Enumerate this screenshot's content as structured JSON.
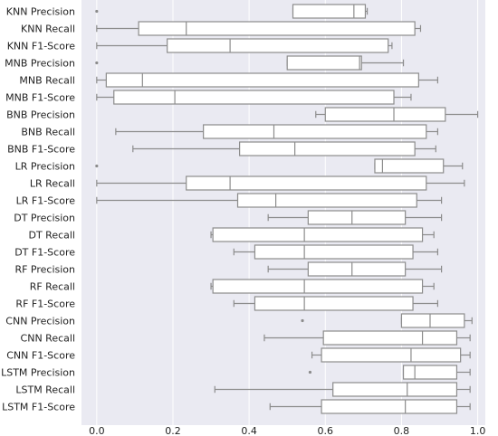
{
  "chart_data": {
    "type": "boxplot",
    "orientation": "horizontal",
    "title": "",
    "xlabel": "",
    "ylabel": "",
    "xlim": [
      -0.04,
      1.02
    ],
    "xticks": [
      0.0,
      0.2,
      0.4,
      0.6,
      0.8,
      1.0
    ],
    "xtick_labels": [
      "0.0",
      "0.2",
      "0.4",
      "0.6",
      "0.8",
      "1.0"
    ],
    "grid": true,
    "colors": {
      "plot_bg": "#eaeaf2",
      "box_fill": "#ffffff",
      "box_edge": "#8c8c8c",
      "grid": "#ffffff"
    },
    "categories": [
      "KNN Precision",
      "KNN Recall",
      "KNN F1-Score",
      "MNB Precision",
      "MNB Recall",
      "MNB F1-Score",
      "BNB Precision",
      "BNB Recall",
      "BNB F1-Score",
      "LR Precision",
      "LR Recall",
      "LR F1-Score",
      "DT Precision",
      "DT Recall",
      "DT F1-Score",
      "RF Precision",
      "RF Recall",
      "RF F1-Score",
      "CNN Precision",
      "CNN Recall",
      "CNN F1-Score",
      "LSTM Precision",
      "LSTM Recall",
      "LSTM F1-Score"
    ],
    "boxes": [
      {
        "label": "KNN Precision",
        "whislo": 0.515,
        "q1": 0.515,
        "med": 0.675,
        "q3": 0.705,
        "whishi": 0.71,
        "fliers": [
          0.0
        ]
      },
      {
        "label": "KNN Recall",
        "whislo": 0.0,
        "q1": 0.11,
        "med": 0.235,
        "q3": 0.835,
        "whishi": 0.85,
        "fliers": []
      },
      {
        "label": "KNN F1-Score",
        "whislo": 0.0,
        "q1": 0.185,
        "med": 0.35,
        "q3": 0.765,
        "whishi": 0.775,
        "fliers": []
      },
      {
        "label": "MNB Precision",
        "whislo": 0.5,
        "q1": 0.5,
        "med": 0.69,
        "q3": 0.695,
        "whishi": 0.805,
        "fliers": [
          0.0
        ]
      },
      {
        "label": "MNB Recall",
        "whislo": 0.0,
        "q1": 0.025,
        "med": 0.12,
        "q3": 0.845,
        "whishi": 0.895,
        "fliers": []
      },
      {
        "label": "MNB F1-Score",
        "whislo": 0.0,
        "q1": 0.045,
        "med": 0.205,
        "q3": 0.78,
        "whishi": 0.825,
        "fliers": []
      },
      {
        "label": "BNB Precision",
        "whislo": 0.575,
        "q1": 0.6,
        "med": 0.78,
        "q3": 0.915,
        "whishi": 1.0,
        "fliers": []
      },
      {
        "label": "BNB Recall",
        "whislo": 0.05,
        "q1": 0.28,
        "med": 0.465,
        "q3": 0.865,
        "whishi": 0.895,
        "fliers": []
      },
      {
        "label": "BNB F1-Score",
        "whislo": 0.095,
        "q1": 0.375,
        "med": 0.52,
        "q3": 0.835,
        "whishi": 0.89,
        "fliers": []
      },
      {
        "label": "LR Precision",
        "whislo": 0.73,
        "q1": 0.73,
        "med": 0.75,
        "q3": 0.91,
        "whishi": 0.96,
        "fliers": [
          0.0
        ]
      },
      {
        "label": "LR Recall",
        "whislo": 0.0,
        "q1": 0.235,
        "med": 0.35,
        "q3": 0.865,
        "whishi": 0.965,
        "fliers": []
      },
      {
        "label": "LR F1-Score",
        "whislo": 0.0,
        "q1": 0.37,
        "med": 0.47,
        "q3": 0.84,
        "whishi": 0.905,
        "fliers": []
      },
      {
        "label": "DT Precision",
        "whislo": 0.45,
        "q1": 0.555,
        "med": 0.67,
        "q3": 0.81,
        "whishi": 0.905,
        "fliers": []
      },
      {
        "label": "DT Recall",
        "whislo": 0.3,
        "q1": 0.305,
        "med": 0.545,
        "q3": 0.855,
        "whishi": 0.885,
        "fliers": []
      },
      {
        "label": "DT F1-Score",
        "whislo": 0.36,
        "q1": 0.415,
        "med": 0.545,
        "q3": 0.83,
        "whishi": 0.895,
        "fliers": []
      },
      {
        "label": "RF Precision",
        "whislo": 0.45,
        "q1": 0.555,
        "med": 0.67,
        "q3": 0.81,
        "whishi": 0.905,
        "fliers": []
      },
      {
        "label": "RF Recall",
        "whislo": 0.3,
        "q1": 0.305,
        "med": 0.545,
        "q3": 0.855,
        "whishi": 0.885,
        "fliers": []
      },
      {
        "label": "RF F1-Score",
        "whislo": 0.36,
        "q1": 0.415,
        "med": 0.545,
        "q3": 0.83,
        "whishi": 0.895,
        "fliers": []
      },
      {
        "label": "CNN Precision",
        "whislo": 0.8,
        "q1": 0.8,
        "med": 0.875,
        "q3": 0.965,
        "whishi": 0.985,
        "fliers": [
          0.54
        ]
      },
      {
        "label": "CNN Recall",
        "whislo": 0.44,
        "q1": 0.595,
        "med": 0.855,
        "q3": 0.945,
        "whishi": 0.98,
        "fliers": []
      },
      {
        "label": "CNN F1-Score",
        "whislo": 0.565,
        "q1": 0.59,
        "med": 0.825,
        "q3": 0.955,
        "whishi": 0.98,
        "fliers": []
      },
      {
        "label": "LSTM Precision",
        "whislo": 0.805,
        "q1": 0.805,
        "med": 0.835,
        "q3": 0.945,
        "whishi": 0.98,
        "fliers": [
          0.56
        ]
      },
      {
        "label": "LSTM Recall",
        "whislo": 0.31,
        "q1": 0.62,
        "med": 0.815,
        "q3": 0.945,
        "whishi": 0.98,
        "fliers": []
      },
      {
        "label": "LSTM F1-Score",
        "whislo": 0.455,
        "q1": 0.59,
        "med": 0.81,
        "q3": 0.945,
        "whishi": 0.98,
        "fliers": []
      }
    ]
  }
}
